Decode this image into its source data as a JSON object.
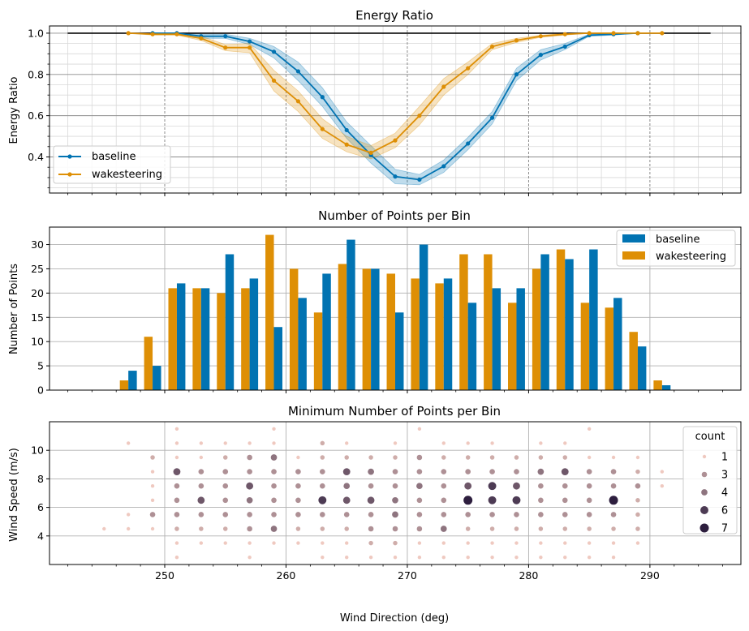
{
  "figure": {
    "xlabel": "Wind Direction (deg)",
    "x_ticks": [
      250,
      260,
      270,
      280,
      290
    ],
    "xlim": [
      240.5,
      297.5
    ]
  },
  "colors": {
    "baseline": "#0173b2",
    "wakesteering": "#de8f05",
    "reference_line": "#000000",
    "scatter_light": "#efc9c0",
    "scatter_dark": "#2d1e3e"
  },
  "chart_data": [
    {
      "type": "line",
      "title": "Energy Ratio",
      "ylabel": "Energy Ratio",
      "ylim": [
        0.225,
        1.035
      ],
      "y_ticks": [
        0.4,
        0.6,
        0.8,
        1.0
      ],
      "y_tick_labels": [
        "0.4",
        "0.6",
        "0.8",
        "1.0"
      ],
      "grid": true,
      "legend": "lower left",
      "reference_line": {
        "x": [
          242,
          295
        ],
        "y": 1.0
      },
      "series": [
        {
          "name": "baseline",
          "x": [
            249,
            251,
            253,
            255,
            257,
            259,
            261,
            263,
            265,
            267,
            269,
            271,
            273,
            275,
            277,
            279,
            281,
            283,
            285,
            287,
            289
          ],
          "y": [
            1.0,
            1.0,
            0.985,
            0.985,
            0.96,
            0.91,
            0.815,
            0.69,
            0.53,
            0.41,
            0.305,
            0.29,
            0.355,
            0.465,
            0.59,
            0.8,
            0.895,
            0.935,
            0.99,
            0.995,
            1.0
          ],
          "lower": [
            1.0,
            0.995,
            0.975,
            0.975,
            0.945,
            0.88,
            0.77,
            0.645,
            0.49,
            0.37,
            0.27,
            0.265,
            0.325,
            0.435,
            0.56,
            0.77,
            0.87,
            0.92,
            0.985,
            0.99,
            1.0
          ],
          "upper": [
            1.0,
            1.0,
            0.995,
            0.995,
            0.975,
            0.935,
            0.86,
            0.735,
            0.57,
            0.455,
            0.34,
            0.315,
            0.385,
            0.495,
            0.62,
            0.83,
            0.92,
            0.95,
            0.995,
            1.0,
            1.0
          ]
        },
        {
          "name": "wakesteering",
          "x": [
            247,
            249,
            251,
            253,
            255,
            257,
            259,
            261,
            263,
            265,
            267,
            269,
            271,
            273,
            275,
            277,
            279,
            281,
            283,
            285,
            287,
            289,
            291
          ],
          "y": [
            1.0,
            0.995,
            0.995,
            0.975,
            0.93,
            0.93,
            0.77,
            0.67,
            0.535,
            0.46,
            0.42,
            0.48,
            0.6,
            0.74,
            0.83,
            0.935,
            0.965,
            0.985,
            0.995,
            1.0,
            1.0,
            1.0,
            1.0
          ],
          "lower": [
            1.0,
            0.99,
            0.99,
            0.965,
            0.915,
            0.905,
            0.72,
            0.62,
            0.49,
            0.425,
            0.39,
            0.445,
            0.555,
            0.7,
            0.8,
            0.92,
            0.955,
            0.98,
            0.99,
            1.0,
            1.0,
            1.0,
            1.0
          ],
          "upper": [
            1.0,
            1.0,
            1.0,
            0.985,
            0.945,
            0.95,
            0.82,
            0.72,
            0.585,
            0.5,
            0.455,
            0.515,
            0.645,
            0.78,
            0.86,
            0.95,
            0.975,
            0.99,
            1.0,
            1.0,
            1.0,
            1.0,
            1.0
          ]
        }
      ]
    },
    {
      "type": "bar",
      "title": "Number of Points per Bin",
      "ylabel": "Number of Points",
      "ylim": [
        0,
        33.6
      ],
      "y_ticks": [
        0,
        5,
        10,
        15,
        20,
        25,
        30
      ],
      "grid": true,
      "legend": "upper right",
      "categories": [
        247,
        249,
        251,
        253,
        255,
        257,
        259,
        261,
        263,
        265,
        267,
        269,
        271,
        273,
        275,
        277,
        279,
        281,
        283,
        285,
        287,
        289,
        291
      ],
      "series": [
        {
          "name": "baseline",
          "values": [
            4,
            5,
            22,
            21,
            28,
            23,
            13,
            19,
            24,
            31,
            25,
            16,
            30,
            23,
            18,
            21,
            21,
            28,
            27,
            29,
            19,
            9,
            1
          ]
        },
        {
          "name": "wakesteering",
          "values": [
            2,
            11,
            21,
            21,
            20,
            21,
            32,
            25,
            16,
            26,
            25,
            24,
            23,
            22,
            28,
            28,
            18,
            25,
            29,
            18,
            17,
            12,
            2
          ]
        }
      ]
    },
    {
      "type": "scatter",
      "title": "Minimum Number of Points per Bin",
      "ylabel": "Wind Speed (m/s)",
      "ylim": [
        2,
        12
      ],
      "y_ticks": [
        4,
        6,
        8,
        10
      ],
      "grid": true,
      "legend": "upper right",
      "legend_title": "count",
      "legend_levels": [
        1,
        3,
        4,
        6,
        7
      ],
      "rows": [
        {
          "y": 2.5,
          "x": [
            251,
            257,
            263,
            265,
            267,
            269,
            271,
            273,
            275,
            277,
            279,
            281,
            283,
            285,
            287
          ],
          "count": [
            1,
            1,
            1,
            1,
            1,
            1,
            1,
            1,
            1,
            1,
            1,
            1,
            1,
            1,
            1
          ]
        },
        {
          "y": 3.5,
          "x": [
            251,
            253,
            255,
            257,
            259,
            261,
            263,
            265,
            267,
            269,
            271,
            273,
            275,
            277,
            279,
            281,
            283,
            285,
            287,
            289
          ],
          "count": [
            1,
            1,
            1,
            1,
            1,
            1,
            1,
            1,
            2,
            2,
            1,
            1,
            1,
            1,
            1,
            1,
            1,
            1,
            1,
            1
          ]
        },
        {
          "y": 4.5,
          "x": [
            245,
            247,
            249,
            251,
            253,
            255,
            257,
            259,
            261,
            263,
            265,
            267,
            269,
            271,
            273,
            275,
            277,
            279,
            281,
            283,
            285,
            287,
            289
          ],
          "count": [
            1,
            1,
            1,
            2,
            2,
            2,
            3,
            4,
            2,
            2,
            2,
            3,
            3,
            3,
            4,
            2,
            2,
            2,
            2,
            2,
            2,
            2,
            2
          ]
        },
        {
          "y": 5.5,
          "x": [
            247,
            249,
            251,
            253,
            255,
            257,
            259,
            261,
            263,
            265,
            267,
            269,
            271,
            273,
            275,
            277,
            279,
            281,
            283,
            285,
            287,
            289
          ],
          "count": [
            1,
            3,
            3,
            3,
            3,
            3,
            3,
            3,
            3,
            3,
            3,
            4,
            3,
            3,
            3,
            3,
            3,
            3,
            3,
            3,
            3,
            2
          ]
        },
        {
          "y": 6.5,
          "x": [
            249,
            251,
            253,
            255,
            257,
            259,
            261,
            263,
            265,
            267,
            269,
            271,
            273,
            275,
            277,
            279,
            281,
            283,
            285,
            287,
            289
          ],
          "count": [
            1,
            3,
            5,
            3,
            4,
            3,
            3,
            6,
            5,
            5,
            4,
            3,
            3,
            7,
            6,
            6,
            3,
            3,
            3,
            7,
            2
          ]
        },
        {
          "y": 7.5,
          "x": [
            249,
            251,
            253,
            255,
            257,
            259,
            261,
            263,
            265,
            267,
            269,
            271,
            273,
            275,
            277,
            279,
            281,
            283,
            285,
            287,
            289,
            291
          ],
          "count": [
            1,
            3,
            3,
            3,
            5,
            3,
            3,
            3,
            4,
            3,
            3,
            4,
            3,
            5,
            6,
            5,
            3,
            3,
            3,
            3,
            3,
            1
          ]
        },
        {
          "y": 8.5,
          "x": [
            249,
            251,
            253,
            255,
            257,
            259,
            261,
            263,
            265,
            267,
            269,
            271,
            273,
            275,
            277,
            279,
            281,
            283,
            285,
            287,
            289,
            291
          ],
          "count": [
            1,
            5,
            3,
            3,
            3,
            3,
            3,
            3,
            5,
            4,
            3,
            3,
            3,
            3,
            3,
            3,
            4,
            5,
            3,
            3,
            2,
            1
          ]
        },
        {
          "y": 9.5,
          "x": [
            249,
            251,
            253,
            255,
            257,
            259,
            261,
            263,
            265,
            267,
            269,
            271,
            273,
            275,
            277,
            279,
            281,
            283,
            285,
            287,
            289
          ],
          "count": [
            2,
            1,
            1,
            2,
            3,
            4,
            1,
            2,
            2,
            2,
            2,
            3,
            2,
            2,
            2,
            2,
            2,
            2,
            1,
            1,
            1
          ]
        },
        {
          "y": 10.5,
          "x": [
            247,
            251,
            253,
            255,
            257,
            259,
            263,
            265,
            269,
            273,
            275,
            277,
            281,
            283
          ],
          "count": [
            1,
            1,
            1,
            1,
            1,
            1,
            2,
            1,
            1,
            1,
            1,
            1,
            1,
            1
          ]
        },
        {
          "y": 11.5,
          "x": [
            251,
            259,
            271,
            285
          ],
          "count": [
            1,
            1,
            1,
            1
          ]
        }
      ]
    }
  ]
}
